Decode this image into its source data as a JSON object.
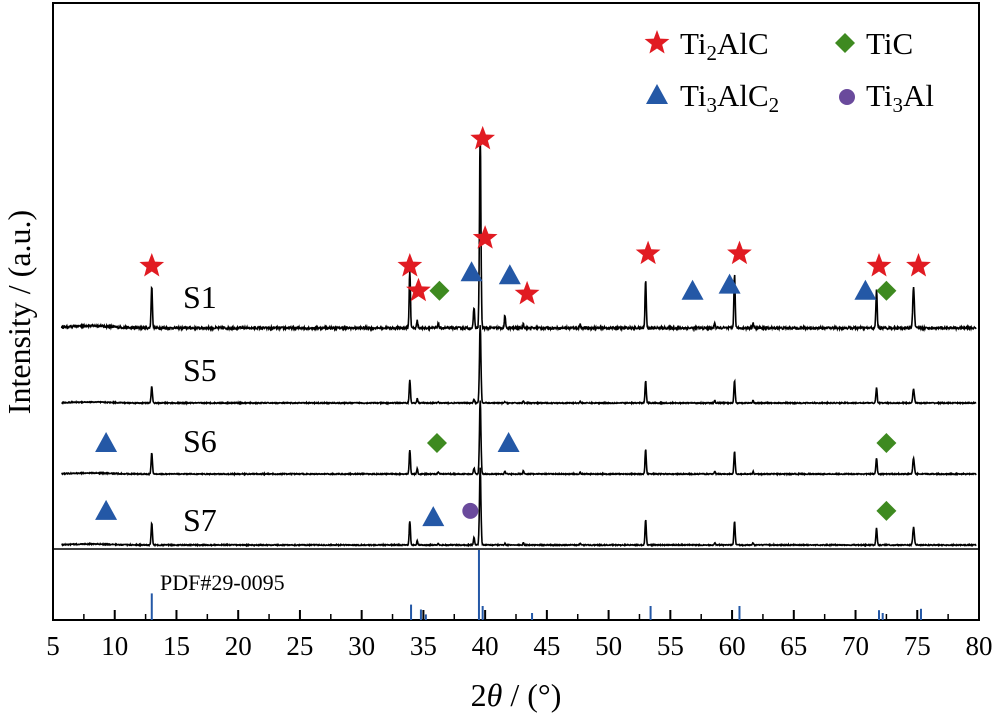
{
  "chart_data": {
    "type": "line",
    "xlabel_prefix": "2",
    "xlabel_theta": "θ",
    "xlabel_suffix": " / (°)",
    "ylabel": "Intensity / (a.u.)",
    "xlim": [
      5,
      80
    ],
    "xticks": [
      5,
      10,
      15,
      20,
      25,
      30,
      35,
      40,
      45,
      50,
      55,
      60,
      65,
      70,
      75,
      80
    ],
    "grid": false,
    "legend_position": "top-right",
    "phase_colors": {
      "Ti2AlC": "#e11b22",
      "Ti3AlC2": "#2458a6",
      "TiC": "#3e8a20",
      "Ti3Al": "#6a4a9c"
    },
    "legend": [
      {
        "phase": "Ti2AlC",
        "pre": "Ti",
        "sub1": "2",
        "mid": "AlC",
        "sub2": "",
        "marker": "star"
      },
      {
        "phase": "TiC",
        "pre": "TiC",
        "sub1": "",
        "mid": "",
        "sub2": "",
        "marker": "diamond"
      },
      {
        "phase": "Ti3AlC2",
        "pre": "Ti",
        "sub1": "3",
        "mid": "AlC",
        "sub2": "2",
        "marker": "triangle"
      },
      {
        "phase": "Ti3Al",
        "pre": "Ti",
        "sub1": "3",
        "mid": "Al",
        "sub2": "",
        "marker": "circle"
      }
    ],
    "peaks": [
      {
        "x": 13.0,
        "h": 0.22
      },
      {
        "x": 33.9,
        "h": 0.3
      },
      {
        "x": 34.5,
        "h": 0.08
      },
      {
        "x": 36.2,
        "h": 0.05
      },
      {
        "x": 39.1,
        "h": 0.12
      },
      {
        "x": 39.6,
        "h": 1.0
      },
      {
        "x": 41.6,
        "h": 0.1
      },
      {
        "x": 43.1,
        "h": 0.05
      },
      {
        "x": 47.7,
        "h": 0.02
      },
      {
        "x": 53.0,
        "h": 0.28
      },
      {
        "x": 58.6,
        "h": 0.03
      },
      {
        "x": 60.2,
        "h": 0.28
      },
      {
        "x": 61.7,
        "h": 0.03
      },
      {
        "x": 71.7,
        "h": 0.2
      },
      {
        "x": 74.7,
        "h": 0.22
      }
    ],
    "series": [
      {
        "name": "S1",
        "scale": [
          1.0,
          1.0,
          0.55,
          0.55,
          0.9,
          1.0,
          0.7,
          0.5,
          1,
          0.9,
          1,
          1,
          1,
          1,
          1
        ]
      },
      {
        "name": "S5",
        "scale": [
          0.95,
          0.95,
          0.7,
          0.3,
          0.4,
          0.42,
          0.15,
          0.6,
          1,
          1,
          1,
          1,
          1,
          0.95,
          0.8
        ]
      },
      {
        "name": "S6",
        "scale": [
          1.2,
          1.0,
          0.9,
          0.5,
          0.6,
          0.6,
          0.4,
          0.8,
          1,
          1.1,
          1,
          1,
          1,
          1.0,
          0.9
        ]
      },
      {
        "name": "S7",
        "scale": [
          1.25,
          1.0,
          0.7,
          0.3,
          0.8,
          0.62,
          0.2,
          0.5,
          1,
          1.15,
          1,
          1.05,
          1,
          1.05,
          1.0
        ]
      }
    ],
    "peak_markers": [
      {
        "series": "S1",
        "phase": "Ti2AlC",
        "x": 13.0,
        "offset": 1.0
      },
      {
        "series": "S1",
        "phase": "Ti2AlC",
        "x": 33.9,
        "offset": 1.0
      },
      {
        "series": "S1",
        "phase": "Ti2AlC",
        "x": 34.6,
        "offset": 0.6
      },
      {
        "series": "S1",
        "phase": "TiC",
        "x": 36.3,
        "offset": 0.6
      },
      {
        "series": "S1",
        "phase": "Ti3AlC2",
        "x": 38.9,
        "offset": 0.9
      },
      {
        "series": "S1",
        "phase": "Ti2AlC",
        "x": 39.8,
        "offset": 3.05
      },
      {
        "series": "S1",
        "phase": "Ti2AlC",
        "x": 40.0,
        "offset": 1.45
      },
      {
        "series": "S1",
        "phase": "Ti3AlC2",
        "x": 42.0,
        "offset": 0.85
      },
      {
        "series": "S1",
        "phase": "Ti2AlC",
        "x": 43.4,
        "offset": 0.55
      },
      {
        "series": "S1",
        "phase": "Ti2AlC",
        "x": 53.2,
        "offset": 1.2
      },
      {
        "series": "S1",
        "phase": "Ti3AlC2",
        "x": 56.8,
        "offset": 0.6
      },
      {
        "series": "S1",
        "phase": "Ti3AlC2",
        "x": 59.8,
        "offset": 0.7
      },
      {
        "series": "S1",
        "phase": "Ti2AlC",
        "x": 60.6,
        "offset": 1.2
      },
      {
        "series": "S1",
        "phase": "Ti3AlC2",
        "x": 70.8,
        "offset": 0.6
      },
      {
        "series": "S1",
        "phase": "Ti2AlC",
        "x": 71.9,
        "offset": 1.0
      },
      {
        "series": "S1",
        "phase": "TiC",
        "x": 72.5,
        "offset": 0.6
      },
      {
        "series": "S1",
        "phase": "Ti2AlC",
        "x": 75.1,
        "offset": 1.0
      },
      {
        "series": "S6",
        "phase": "Ti3AlC2",
        "x": 9.3,
        "offset": 0.5
      },
      {
        "series": "S6",
        "phase": "TiC",
        "x": 36.1,
        "offset": 0.5
      },
      {
        "series": "S6",
        "phase": "Ti3AlC2",
        "x": 41.9,
        "offset": 0.5
      },
      {
        "series": "S6",
        "phase": "TiC",
        "x": 72.5,
        "offset": 0.5
      },
      {
        "series": "S7",
        "phase": "Ti3AlC2",
        "x": 9.3,
        "offset": 0.55
      },
      {
        "series": "S7",
        "phase": "Ti3AlC2",
        "x": 35.8,
        "offset": 0.45
      },
      {
        "series": "S7",
        "phase": "Ti3Al",
        "x": 38.8,
        "offset": 0.55
      },
      {
        "series": "S7",
        "phase": "TiC",
        "x": 72.5,
        "offset": 0.55
      }
    ],
    "reference": {
      "label": "PDF#29-0095",
      "lines": [
        {
          "x": 13.0,
          "h": 0.38
        },
        {
          "x": 34.0,
          "h": 0.22
        },
        {
          "x": 34.8,
          "h": 0.15
        },
        {
          "x": 35.2,
          "h": 0.08
        },
        {
          "x": 39.5,
          "h": 1.0
        },
        {
          "x": 39.8,
          "h": 0.2
        },
        {
          "x": 43.8,
          "h": 0.1
        },
        {
          "x": 53.4,
          "h": 0.2
        },
        {
          "x": 60.6,
          "h": 0.2
        },
        {
          "x": 71.9,
          "h": 0.14
        },
        {
          "x": 72.2,
          "h": 0.1
        },
        {
          "x": 75.3,
          "h": 0.16
        }
      ]
    }
  }
}
